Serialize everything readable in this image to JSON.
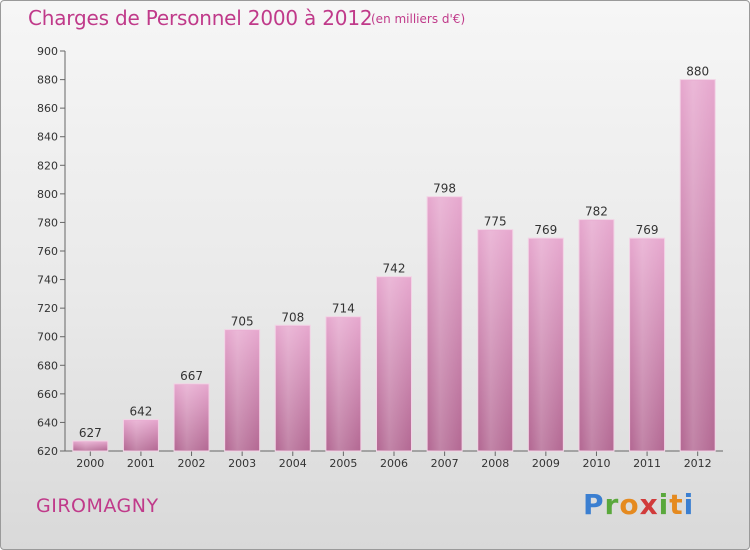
{
  "header": {
    "title": "Charges de Personnel 2000 à 2012",
    "subtitle": "(en milliers d'€)"
  },
  "footer": {
    "commune": "GIROMAGNY",
    "logo_text": "Proxiti"
  },
  "colors": {
    "title": "#c03a8a",
    "bar_top": "#e7a9cf",
    "bar_bottom": "#b46a94"
  },
  "chart_data": {
    "type": "bar",
    "title": "Charges de Personnel 2000 à 2012",
    "subtitle": "(en milliers d'€)",
    "xlabel": "",
    "ylabel": "",
    "categories": [
      "2000",
      "2001",
      "2002",
      "2003",
      "2004",
      "2005",
      "2006",
      "2007",
      "2008",
      "2009",
      "2010",
      "2011",
      "2012"
    ],
    "values": [
      627,
      642,
      667,
      705,
      708,
      714,
      742,
      798,
      775,
      769,
      782,
      769,
      880
    ],
    "ylim": [
      620,
      900
    ],
    "yticks": [
      620,
      640,
      660,
      680,
      700,
      720,
      740,
      760,
      780,
      800,
      820,
      840,
      860,
      880,
      900
    ],
    "grid": false,
    "data_labels": true
  }
}
